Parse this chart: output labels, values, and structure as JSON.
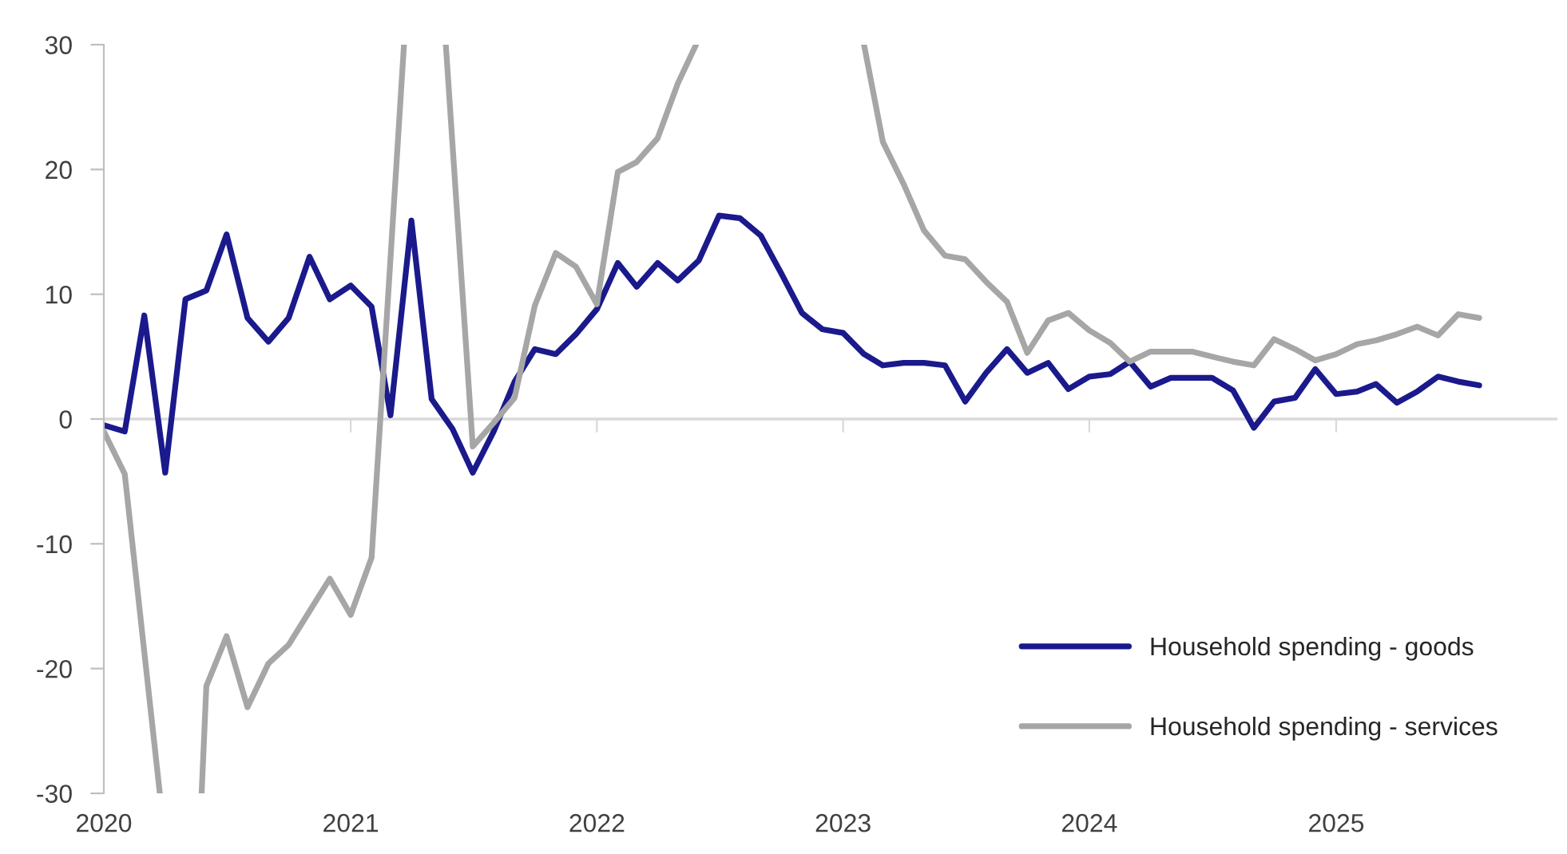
{
  "chart_data": {
    "type": "line",
    "x": [
      "2020-01",
      "2020-02",
      "2020-03",
      "2020-04",
      "2020-05",
      "2020-06",
      "2020-07",
      "2020-08",
      "2020-09",
      "2020-10",
      "2020-11",
      "2020-12",
      "2021-01",
      "2021-02",
      "2021-03",
      "2021-04",
      "2021-05",
      "2021-06",
      "2021-07",
      "2021-08",
      "2021-09",
      "2021-10",
      "2021-11",
      "2021-12",
      "2022-01",
      "2022-02",
      "2022-03",
      "2022-04",
      "2022-05",
      "2022-06",
      "2022-07",
      "2022-08",
      "2022-09",
      "2022-10",
      "2022-11",
      "2022-12",
      "2023-01",
      "2023-02",
      "2023-03",
      "2023-04",
      "2023-05",
      "2023-06",
      "2023-07",
      "2023-08",
      "2023-09",
      "2023-10",
      "2023-11",
      "2023-12",
      "2024-01",
      "2024-02",
      "2024-03",
      "2024-04",
      "2024-05",
      "2024-06",
      "2024-07",
      "2024-08",
      "2024-09",
      "2024-10",
      "2024-11",
      "2024-12",
      "2025-01",
      "2025-02",
      "2025-03",
      "2025-04",
      "2025-05",
      "2025-06",
      "2025-07",
      "2025-08"
    ],
    "series": [
      {
        "name": "Household spending - goods",
        "color": "#1a1a8c",
        "values": [
          -0.5,
          -1,
          8.3,
          -4.3,
          9.6,
          10.3,
          14.8,
          8.1,
          6.2,
          8.1,
          13,
          9.6,
          10.7,
          9,
          0.3,
          15.9,
          1.6,
          -0.8,
          -4.3,
          -1,
          3,
          5.6,
          5.2,
          6.8,
          8.8,
          12.5,
          10.6,
          12.5,
          11.1,
          12.7,
          16.3,
          16.1,
          14.7,
          11.7,
          8.5,
          7.2,
          6.9,
          5.2,
          4.3,
          4.5,
          4.5,
          4.3,
          1.4,
          3.7,
          5.6,
          3.7,
          4.5,
          2.4,
          3.4,
          3.6,
          4.6,
          2.6,
          3.3,
          3.3,
          3.3,
          2.3,
          -0.7,
          1.4,
          1.7,
          4,
          2,
          2.2,
          2.8,
          1.3,
          2.2,
          3.4,
          3,
          2.7
        ]
      },
      {
        "name": "Household spending - services",
        "color": "#a6a6a6",
        "x": [
          "2020-01",
          "2020-02",
          "2020-03-24",
          "2020-04",
          "2020-05-25",
          "2020-06",
          "2020-07",
          "2020-08",
          "2020-09",
          "2020-10",
          "2020-11",
          "2020-12",
          "2021-01",
          "2021-02",
          "2021-03-21",
          "2021-04",
          "2021-05-22",
          "2021-07",
          "2021-08",
          "2021-09",
          "2021-10",
          "2021-11",
          "2021-12",
          "2022-01",
          "2022-02",
          "2022-03",
          "2022-04",
          "2022-05",
          "2022-05-28",
          "2022-09",
          "2023-02",
          "2023-03",
          "2023-04",
          "2023-05",
          "2023-06",
          "2023-07",
          "2023-08",
          "2023-09",
          "2023-10",
          "2023-11",
          "2023-12",
          "2024-01",
          "2024-02",
          "2024-03",
          "2024-04",
          "2024-05",
          "2024-06",
          "2024-07",
          "2024-08",
          "2024-09",
          "2024-10",
          "2024-11",
          "2024-12",
          "2025-01",
          "2025-02",
          "2025-03",
          "2025-04",
          "2025-05",
          "2025-06",
          "2025-07",
          "2025-08"
        ],
        "values": [
          -1,
          -4.4,
          -30,
          null,
          -30,
          -21.4,
          -17.4,
          -23.1,
          -19.6,
          -18.1,
          -15.4,
          -12.8,
          -15.7,
          -11.1,
          30,
          null,
          30,
          -2.2,
          -0.3,
          1.7,
          9.1,
          13.3,
          12.2,
          9.2,
          19.8,
          20.6,
          22.5,
          26.9,
          30,
          null,
          30,
          22.2,
          18.8,
          15.1,
          13.1,
          12.8,
          11,
          9.4,
          5.3,
          7.9,
          8.5,
          7.1,
          6.1,
          4.6,
          5.4,
          5.4,
          5.4,
          5,
          4.6,
          4.3,
          6.4,
          5.6,
          4.7,
          5.2,
          6,
          6.3,
          6.8,
          7.4,
          6.7,
          8.4,
          8.1
        ]
      }
    ],
    "xlim": [
      "2020-01-01",
      "2025-11-25"
    ],
    "xticks": [
      {
        "value": "2020-01-01",
        "label": "2020"
      },
      {
        "value": "2021-01-01",
        "label": "2021"
      },
      {
        "value": "2022-01-01",
        "label": "2022"
      },
      {
        "value": "2023-01-01",
        "label": "2023"
      },
      {
        "value": "2024-01-01",
        "label": "2024"
      },
      {
        "value": "2025-01-01",
        "label": "2025"
      }
    ],
    "ylim": [
      -30,
      30
    ],
    "yticks": [
      -30,
      -20,
      -10,
      0,
      10,
      20,
      30
    ],
    "legend": "bottom right",
    "ref_lines": [
      {
        "axis": "y",
        "value": 0,
        "color": "#d9d9d9"
      }
    ]
  }
}
